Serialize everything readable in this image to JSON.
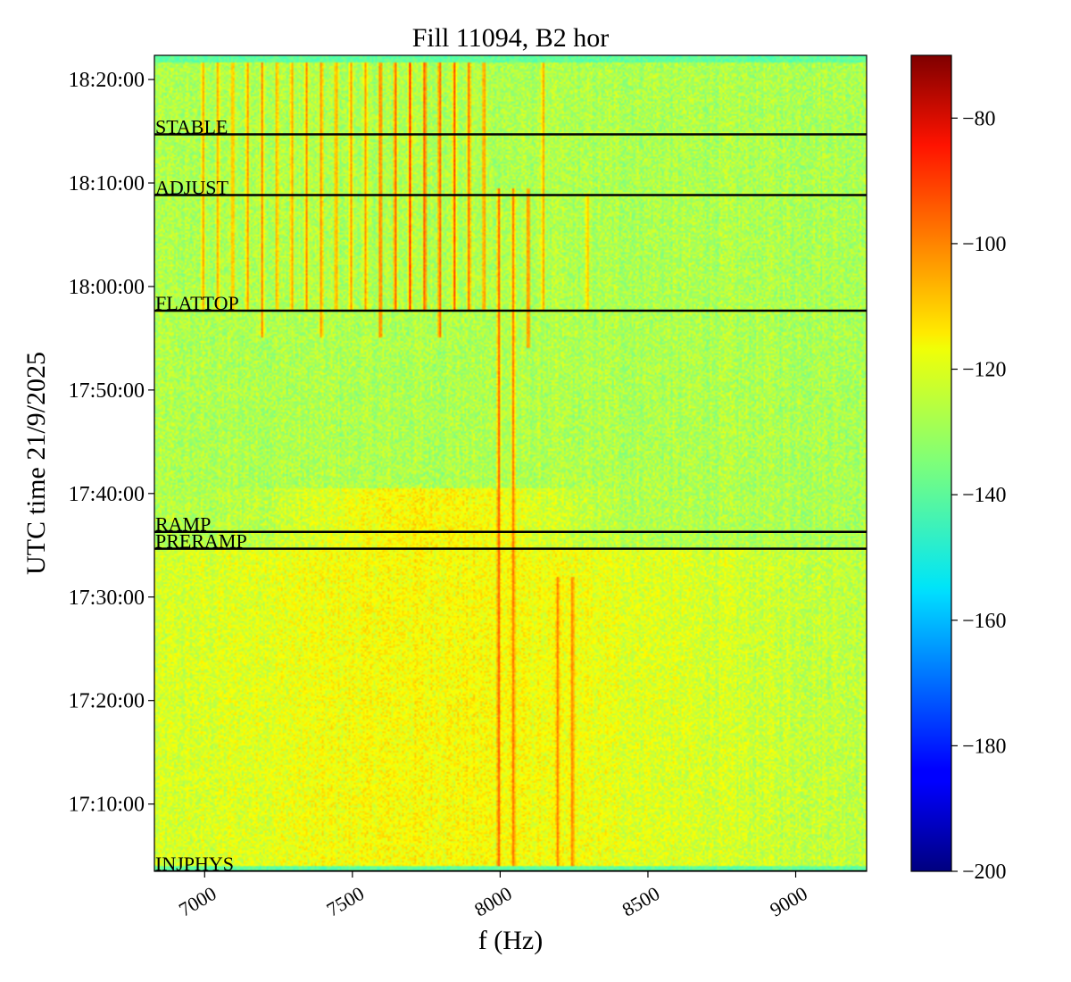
{
  "chart_data": {
    "type": "heatmap",
    "title": "Fill 11094, B2 hor",
    "xlabel": "f (Hz)",
    "ylabel": "UTC time 21/9/2025",
    "xlim": [
      6830,
      9240
    ],
    "ylim": [
      "17:03:30",
      "18:22:20"
    ],
    "x_ticks": [
      7000,
      7500,
      8000,
      8500,
      9000
    ],
    "y_ticks": [
      {
        "label": "17:10:00",
        "t": "17:10:00"
      },
      {
        "label": "17:20:00",
        "t": "17:20:00"
      },
      {
        "label": "17:30:00",
        "t": "17:30:00"
      },
      {
        "label": "17:40:00",
        "t": "17:40:00"
      },
      {
        "label": "17:50:00",
        "t": "17:50:00"
      },
      {
        "label": "18:00:00",
        "t": "18:00:00"
      },
      {
        "label": "18:10:00",
        "t": "18:10:00"
      },
      {
        "label": "18:20:00",
        "t": "18:20:00"
      }
    ],
    "colorbar": {
      "colormap": "jet",
      "range": [
        -200,
        -70
      ],
      "ticks": [
        -200,
        -180,
        -160,
        -140,
        -120,
        -100,
        -80
      ]
    },
    "beam_modes": [
      {
        "label": "STABLE",
        "t": "18:14:42"
      },
      {
        "label": "ADJUST",
        "t": "18:08:50"
      },
      {
        "label": "FLATTOP",
        "t": "17:57:40"
      },
      {
        "label": "RAMP",
        "t": "17:36:18"
      },
      {
        "label": "PRERAMP",
        "t": "17:34:40"
      },
      {
        "label": "INJPHYS",
        "t": "17:03:30"
      }
    ],
    "spectral_lines": [
      {
        "f": 6995,
        "t_start": "17:57:40",
        "t_end": "18:22:20",
        "level": -107
      },
      {
        "f": 7045,
        "t_start": "17:57:40",
        "t_end": "18:22:20",
        "level": -108
      },
      {
        "f": 7095,
        "t_start": "17:57:40",
        "t_end": "18:22:20",
        "level": -107
      },
      {
        "f": 7145,
        "t_start": "17:57:40",
        "t_end": "18:22:20",
        "level": -105
      },
      {
        "f": 7195,
        "t_start": "17:55:00",
        "t_end": "18:22:20",
        "level": -103
      },
      {
        "f": 7245,
        "t_start": "17:57:40",
        "t_end": "18:22:20",
        "level": -107
      },
      {
        "f": 7295,
        "t_start": "17:57:40",
        "t_end": "18:22:20",
        "level": -106
      },
      {
        "f": 7345,
        "t_start": "17:57:40",
        "t_end": "18:22:20",
        "level": -104
      },
      {
        "f": 7395,
        "t_start": "17:55:00",
        "t_end": "18:22:20",
        "level": -104
      },
      {
        "f": 7445,
        "t_start": "17:57:40",
        "t_end": "18:22:20",
        "level": -105
      },
      {
        "f": 7495,
        "t_start": "17:57:40",
        "t_end": "18:22:20",
        "level": -106
      },
      {
        "f": 7545,
        "t_start": "17:57:40",
        "t_end": "18:22:20",
        "level": -106
      },
      {
        "f": 7595,
        "t_start": "17:55:00",
        "t_end": "18:22:20",
        "level": -98
      },
      {
        "f": 7645,
        "t_start": "17:57:40",
        "t_end": "18:22:20",
        "level": -97
      },
      {
        "f": 7695,
        "t_start": "17:57:40",
        "t_end": "18:22:20",
        "level": -92
      },
      {
        "f": 7745,
        "t_start": "17:57:40",
        "t_end": "18:22:20",
        "level": -94
      },
      {
        "f": 7795,
        "t_start": "17:55:00",
        "t_end": "18:22:20",
        "level": -96
      },
      {
        "f": 7845,
        "t_start": "17:57:40",
        "t_end": "18:22:20",
        "level": -96
      },
      {
        "f": 7895,
        "t_start": "17:57:40",
        "t_end": "18:22:20",
        "level": -98
      },
      {
        "f": 7945,
        "t_start": "17:57:40",
        "t_end": "18:22:20",
        "level": -102
      },
      {
        "f": 7995,
        "t_start": "17:03:30",
        "t_end": "18:09:30",
        "level": -98
      },
      {
        "f": 8045,
        "t_start": "17:03:30",
        "t_end": "18:09:30",
        "level": -100
      },
      {
        "f": 8095,
        "t_start": "17:54:00",
        "t_end": "18:09:30",
        "level": -100
      },
      {
        "f": 8145,
        "t_start": "17:57:40",
        "t_end": "18:22:20",
        "level": -106
      },
      {
        "f": 8195,
        "t_start": "17:03:30",
        "t_end": "17:32:00",
        "level": -102
      },
      {
        "f": 8245,
        "t_start": "17:03:30",
        "t_end": "17:32:00",
        "level": -101
      },
      {
        "f": 8295,
        "t_start": "17:57:40",
        "t_end": "18:09:00",
        "level": -110
      }
    ]
  }
}
